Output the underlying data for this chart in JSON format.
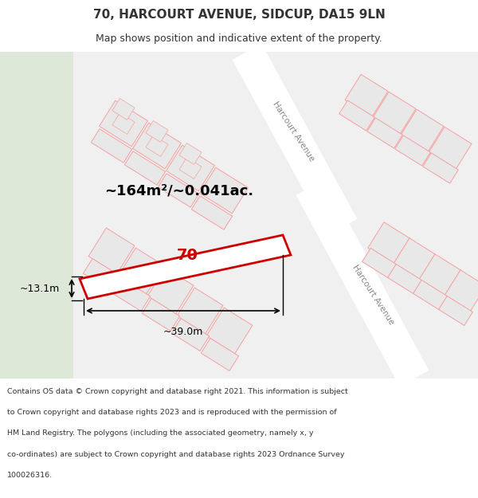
{
  "title": "70, HARCOURT AVENUE, SIDCUP, DA15 9LN",
  "subtitle": "Map shows position and indicative extent of the property.",
  "footer": "Contains OS data © Crown copyright and database right 2021. This information is subject to Crown copyright and database rights 2023 and is reproduced with the permission of HM Land Registry. The polygons (including the associated geometry, namely x, y co-ordinates) are subject to Crown copyright and database rights 2023 Ordnance Survey 100026316.",
  "area_label": "~164m²/~0.041ac.",
  "width_label": "~39.0m",
  "height_label": "~13.1m",
  "property_number": "70",
  "map_bg": "#f5f5f5",
  "road_color": "#ffffff",
  "grid_line_color": "#f5a0a0",
  "building_fill": "#e8e8e8",
  "building_outline": "#f5a0a0",
  "property_outline": "#cc0000",
  "property_fill": "none",
  "green_area": "#d8e8d0",
  "title_color": "#333333",
  "footer_color": "#333333"
}
